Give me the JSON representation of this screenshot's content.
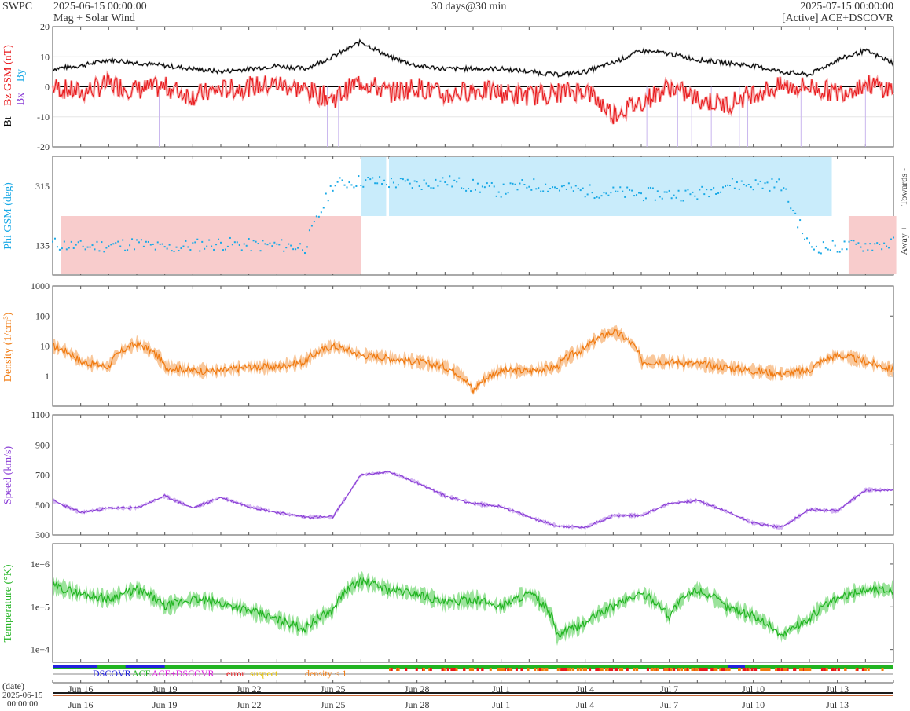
{
  "header": {
    "app": "SWPC",
    "start": "2025-06-15 00:00:00",
    "subtitle": "Mag + Solar Wind",
    "resolution": "30 days@30 min",
    "end": "2025-07-15 00:00:00",
    "source": "[Active] ACE+DSCOVR"
  },
  "colors": {
    "bt": "#000000",
    "bz": "#e8181b",
    "by": "#19a9e6",
    "bx": "#8b3fd6",
    "phi": "#19a9e6",
    "towards_band": "#c9ecfb",
    "away_band": "#f8cccc",
    "density": "#f07a10",
    "speed": "#8b3fd6",
    "temperature": "#22b422",
    "dscovr": "#2222dd",
    "ace": "#22b422",
    "ace_dscovr": "#e020e0",
    "error": "#e8181b",
    "suspect": "#e6c300",
    "density_lt1": "#f07a10"
  },
  "x_axis": {
    "tick_labels": [
      "Jun 16",
      "Jun 19",
      "Jun 22",
      "Jun 25",
      "Jun 28",
      "Jul 1",
      "Jul 4",
      "Jul 7",
      "Jul 10",
      "Jul 13"
    ],
    "date_label": "(date)",
    "date_start": "2025-06-15",
    "date_time": "00:00:00"
  },
  "legend": {
    "dscovr": "DSCOVR",
    "ace": "ACE",
    "ace_dscovr": "ACE+DSCOVR",
    "error": "error",
    "suspect": "suspect",
    "density_lt1": "density < 1"
  },
  "chart_data": [
    {
      "type": "line",
      "ylabel_bt": "Bt",
      "ylabel_bz": "Bz GSM (nT)",
      "ylabel_by": "By",
      "ylabel_bx": "Bx",
      "ylim": [
        -20,
        20
      ],
      "yticks": [
        "20",
        "10",
        "0",
        "-10",
        "-20"
      ],
      "x_days": [
        0,
        1,
        2,
        3,
        4,
        5,
        6,
        7,
        8,
        9,
        10,
        11,
        12,
        13,
        14,
        15,
        16,
        17,
        18,
        19,
        20,
        21,
        22,
        23,
        24,
        25,
        26,
        27,
        28,
        29,
        30
      ],
      "series": [
        {
          "name": "Bt",
          "values": [
            6,
            7,
            9,
            8,
            7,
            6,
            5,
            6,
            7,
            6,
            10,
            15,
            10,
            7,
            6,
            6,
            6,
            5,
            4,
            5,
            8,
            12,
            11,
            9,
            8,
            7,
            5,
            4,
            9,
            12,
            8
          ]
        },
        {
          "name": "Bz",
          "values": [
            0,
            -2,
            1,
            -1,
            0,
            -3,
            -1,
            0,
            1,
            -1,
            -4,
            2,
            -2,
            0,
            -3,
            -1,
            -2,
            -3,
            -2,
            -1,
            -9,
            -5,
            0,
            -4,
            -6,
            -2,
            0,
            0,
            -2,
            1,
            -1
          ]
        }
      ]
    },
    {
      "type": "scatter",
      "ylabel": "Phi GSM (deg)",
      "right_top": "Towards -",
      "right_bottom": "Away +",
      "ylim": [
        45,
        405
      ],
      "yticks": [
        "315",
        "135"
      ],
      "x_days": [
        0,
        1,
        2,
        3,
        4,
        5,
        6,
        7,
        8,
        9,
        10,
        11,
        12,
        13,
        14,
        15,
        16,
        17,
        18,
        19,
        20,
        21,
        22,
        23,
        24,
        25,
        26,
        27,
        28,
        29,
        30
      ],
      "values": [
        140,
        130,
        135,
        140,
        125,
        135,
        140,
        135,
        135,
        130,
        320,
        330,
        325,
        320,
        330,
        315,
        300,
        320,
        310,
        300,
        295,
        290,
        290,
        290,
        320,
        320,
        320,
        130,
        130,
        135,
        140
      ]
    },
    {
      "type": "line",
      "scale": "log",
      "ylabel": "Density (1/cm³)",
      "ylim": [
        0.1,
        1000
      ],
      "yticks": [
        "1000",
        "100",
        "10",
        "1"
      ],
      "x_days": [
        0,
        1,
        2,
        3,
        4,
        5,
        6,
        7,
        8,
        9,
        10,
        11,
        12,
        13,
        14,
        15,
        16,
        17,
        18,
        19,
        20,
        21,
        22,
        23,
        24,
        25,
        26,
        27,
        28,
        29,
        30
      ],
      "values": [
        10,
        3,
        2,
        12,
        2,
        1.5,
        1.5,
        2,
        2,
        3,
        10,
        5,
        4,
        3,
        2,
        0.3,
        1.5,
        1.5,
        2,
        8,
        30,
        3,
        3,
        2.5,
        2,
        1.5,
        1.2,
        1.5,
        5,
        3,
        1.5
      ]
    },
    {
      "type": "line",
      "ylabel": "Speed (km/s)",
      "ylim": [
        300,
        1100
      ],
      "yticks": [
        "1100",
        "900",
        "700",
        "500",
        "300"
      ],
      "x_days": [
        0,
        1,
        2,
        3,
        4,
        5,
        6,
        7,
        8,
        9,
        10,
        11,
        12,
        13,
        14,
        15,
        16,
        17,
        18,
        19,
        20,
        21,
        22,
        23,
        24,
        25,
        26,
        27,
        28,
        29,
        30
      ],
      "values": [
        530,
        450,
        480,
        480,
        560,
        480,
        550,
        490,
        450,
        420,
        420,
        700,
        720,
        650,
        560,
        510,
        490,
        420,
        360,
        350,
        430,
        430,
        510,
        530,
        460,
        380,
        350,
        470,
        460,
        600,
        600
      ]
    },
    {
      "type": "line",
      "scale": "log",
      "ylabel": "Temperature (°K)",
      "ylim": [
        5000,
        3000000
      ],
      "yticks": [
        "1e+6",
        "1e+5",
        "1e+4"
      ],
      "x_days": [
        0,
        1,
        2,
        3,
        4,
        5,
        6,
        7,
        8,
        9,
        10,
        11,
        12,
        13,
        14,
        15,
        16,
        17,
        18,
        19,
        20,
        21,
        22,
        23,
        24,
        25,
        26,
        27,
        28,
        29,
        30
      ],
      "values": [
        300000,
        200000,
        150000,
        250000,
        100000,
        150000,
        120000,
        80000,
        50000,
        30000,
        80000,
        400000,
        250000,
        200000,
        120000,
        150000,
        100000,
        200000,
        20000,
        40000,
        100000,
        200000,
        60000,
        250000,
        100000,
        60000,
        20000,
        50000,
        150000,
        250000,
        250000
      ]
    }
  ]
}
